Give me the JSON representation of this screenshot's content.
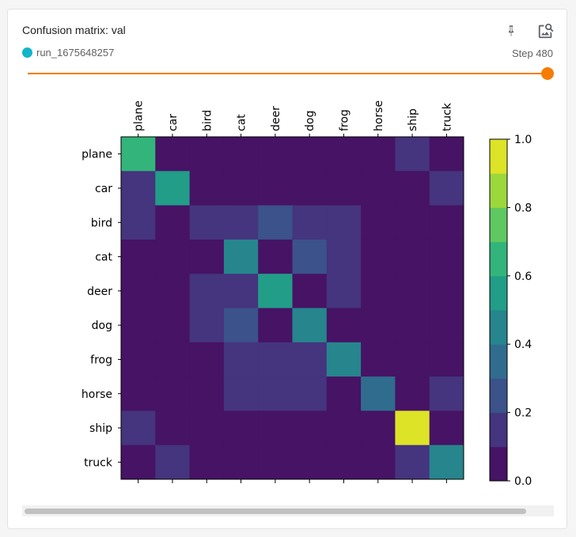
{
  "card": {
    "title": "Confusion matrix: val",
    "run_name": "run_1675648257",
    "run_color": "#12b5cb",
    "step_label": "Step 480",
    "pin_icon": "pin-icon",
    "inspect_icon": "image-search-icon",
    "accent_color": "#f57c00"
  },
  "chart_data": {
    "type": "heatmap",
    "title": "",
    "xlabel": "",
    "ylabel": "",
    "x_categories": [
      "plane",
      "car",
      "bird",
      "cat",
      "deer",
      "dog",
      "frog",
      "horse",
      "ship",
      "truck"
    ],
    "y_categories": [
      "plane",
      "car",
      "bird",
      "cat",
      "deer",
      "dog",
      "frog",
      "horse",
      "ship",
      "truck"
    ],
    "values": [
      [
        0.65,
        0.05,
        0.07,
        0.03,
        0.06,
        0.02,
        0.01,
        0.04,
        0.18,
        0.05
      ],
      [
        0.11,
        0.58,
        0.0,
        0.09,
        0.05,
        0.02,
        0.03,
        0.04,
        0.07,
        0.17
      ],
      [
        0.12,
        0.03,
        0.18,
        0.16,
        0.22,
        0.15,
        0.12,
        0.03,
        0.06,
        0.06
      ],
      [
        0.04,
        0.02,
        0.06,
        0.4,
        0.07,
        0.22,
        0.11,
        0.04,
        0.06,
        0.05
      ],
      [
        0.03,
        0.02,
        0.12,
        0.11,
        0.58,
        0.06,
        0.13,
        0.07,
        0.03,
        0.04
      ],
      [
        0.04,
        0.03,
        0.1,
        0.29,
        0.08,
        0.4,
        0.05,
        0.03,
        0.03,
        0.02
      ],
      [
        0.03,
        0.03,
        0.06,
        0.19,
        0.12,
        0.12,
        0.45,
        0.03,
        0.03,
        0.05
      ],
      [
        0.06,
        0.04,
        0.06,
        0.19,
        0.15,
        0.1,
        0.03,
        0.35,
        0.01,
        0.12
      ],
      [
        0.19,
        0.04,
        0.02,
        0.03,
        0.03,
        0.03,
        0.02,
        0.01,
        0.95,
        0.04
      ],
      [
        0.08,
        0.14,
        0.04,
        0.09,
        0.06,
        0.08,
        0.03,
        0.01,
        0.15,
        0.4
      ]
    ],
    "colorbar": {
      "ticks": [
        "0.0",
        "0.2",
        "0.4",
        "0.6",
        "0.8",
        "1.0"
      ],
      "range": [
        0,
        1
      ],
      "levels": 10,
      "colormap": "viridis",
      "stops": [
        "#440154",
        "#482475",
        "#414487",
        "#355f8d",
        "#2a788e",
        "#21918c",
        "#22a884",
        "#44bf70",
        "#7ad151",
        "#bddf26",
        "#fde725"
      ]
    },
    "grid": false,
    "legend": "colorbar-right"
  },
  "scroll": {
    "label": "horizontal-scrollbar"
  }
}
